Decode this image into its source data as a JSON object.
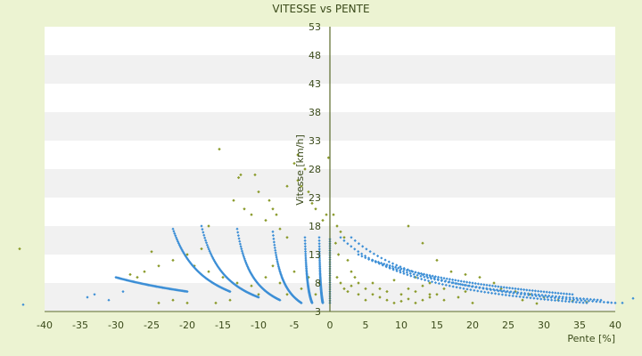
{
  "chart_data": {
    "type": "scatter",
    "title": "VITESSE vs PENTE",
    "xlabel": "Pente [%]",
    "ylabel": "Vitesse [km/h]",
    "xlim": [
      -40,
      40
    ],
    "ylim": [
      3,
      53
    ],
    "x_ticks": [
      "-40",
      "-35",
      "-30",
      "-25",
      "-20",
      "-15",
      "-10",
      "-5",
      "0",
      "5",
      "10",
      "15",
      "20",
      "25",
      "30",
      "35",
      "40"
    ],
    "y_ticks": [
      "3",
      "8",
      "13",
      "18",
      "23",
      "28",
      "33",
      "38",
      "43",
      "48",
      "53"
    ],
    "grid": "horizontal alternating bands",
    "legend": "none",
    "colors": {
      "series_blue": "#3d8fd6",
      "series_olive": "#8a9a2a",
      "band_light": "#f1f1f1",
      "band_white": "#ffffff",
      "axis": "#5a6a2a",
      "background": "#ecf3d2"
    },
    "series": [
      {
        "marker": "blue-diamond",
        "curves_negative": [
          {
            "x_from": -1,
            "x_to": -1.5,
            "y_from": 4.5,
            "y_to": 16
          },
          {
            "x_from": -2.5,
            "x_to": -3.5,
            "y_from": 4.5,
            "y_to": 16
          },
          {
            "x_from": -4,
            "x_to": -8,
            "y_from": 4.5,
            "y_to": 17
          },
          {
            "x_from": -7,
            "x_to": -13,
            "y_from": 5,
            "y_to": 17.5
          },
          {
            "x_from": -10,
            "x_to": -18,
            "y_from": 5.5,
            "y_to": 18
          },
          {
            "x_from": -14,
            "x_to": -22,
            "y_from": 6.5,
            "y_to": 17.5
          },
          {
            "x_from": -20,
            "x_to": -30,
            "y_from": 6.5,
            "y_to": 9
          }
        ],
        "curves_positive": [
          {
            "x_from": 1.5,
            "x_to": 36,
            "y_from": 16,
            "y_to": 4.5
          },
          {
            "x_from": 3,
            "x_to": 40,
            "y_from": 16,
            "y_to": 4.5
          },
          {
            "x_from": 4,
            "x_to": 38,
            "y_from": 13,
            "y_to": 5
          },
          {
            "x_from": 6,
            "x_to": 34,
            "y_from": 12,
            "y_to": 6
          }
        ],
        "outliers": [
          [
            -43,
            4.2
          ],
          [
            -34,
            5.5
          ],
          [
            -33,
            6
          ],
          [
            -31,
            5
          ],
          [
            -29,
            6.5
          ],
          [
            42.5,
            5.3
          ],
          [
            41,
            4.5
          ],
          [
            39,
            4.6
          ]
        ]
      },
      {
        "marker": "olive-diamond",
        "points": [
          [
            -15.5,
            31.5
          ],
          [
            -12.5,
            27
          ],
          [
            -12.8,
            26.5
          ],
          [
            -10.5,
            27
          ],
          [
            -10,
            24
          ],
          [
            -8.5,
            22.5
          ],
          [
            -8,
            21
          ],
          [
            -7.5,
            20
          ],
          [
            -6,
            25
          ],
          [
            -5,
            29
          ],
          [
            -4.5,
            26
          ],
          [
            -4,
            25
          ],
          [
            -3.5,
            28
          ],
          [
            -3,
            24
          ],
          [
            -2.5,
            22
          ],
          [
            -2,
            21
          ],
          [
            -4.5,
            30.5
          ],
          [
            -0.2,
            30
          ],
          [
            -0.5,
            20
          ],
          [
            -1,
            19
          ],
          [
            -13.5,
            22.5
          ],
          [
            -12,
            21
          ],
          [
            -11,
            20
          ],
          [
            -9,
            19
          ],
          [
            -7,
            17.5
          ],
          [
            -6,
            16
          ],
          [
            -17,
            18
          ],
          [
            -18,
            14
          ],
          [
            -20,
            13
          ],
          [
            -22,
            12
          ],
          [
            -24,
            11
          ],
          [
            -25,
            13.5
          ],
          [
            -26,
            10
          ],
          [
            -27,
            9
          ],
          [
            -28,
            9.5
          ],
          [
            -43.5,
            14
          ],
          [
            -19,
            11
          ],
          [
            -17,
            10
          ],
          [
            -15,
            9
          ],
          [
            -13,
            8
          ],
          [
            -11,
            7.5
          ],
          [
            -9,
            9
          ],
          [
            -8,
            11
          ],
          [
            -7,
            8
          ],
          [
            -5,
            10
          ],
          [
            -4,
            7
          ],
          [
            -3,
            9
          ],
          [
            -2,
            6
          ],
          [
            -1.5,
            8
          ],
          [
            -6,
            6
          ],
          [
            -10,
            6
          ],
          [
            -14,
            5
          ],
          [
            -16,
            4.5
          ],
          [
            -20,
            4.5
          ],
          [
            -22,
            5
          ],
          [
            -24,
            4.5
          ],
          [
            0.5,
            20
          ],
          [
            1,
            18
          ],
          [
            1.5,
            17
          ],
          [
            2,
            16
          ],
          [
            0.8,
            15
          ],
          [
            1.2,
            13
          ],
          [
            2.5,
            12
          ],
          [
            3,
            10
          ],
          [
            3.5,
            9
          ],
          [
            4,
            8
          ],
          [
            5,
            7
          ],
          [
            6,
            6
          ],
          [
            7,
            5.5
          ],
          [
            8,
            5
          ],
          [
            9,
            4.5
          ],
          [
            10,
            4.8
          ],
          [
            11,
            5.2
          ],
          [
            12,
            4.5
          ],
          [
            13,
            5
          ],
          [
            14,
            6
          ],
          [
            1,
            9
          ],
          [
            1.5,
            8
          ],
          [
            2,
            7
          ],
          [
            2.5,
            6.5
          ],
          [
            3,
            7.5
          ],
          [
            4,
            6
          ],
          [
            5,
            5
          ],
          [
            6,
            8
          ],
          [
            7,
            7
          ],
          [
            8,
            6.5
          ],
          [
            9,
            8.5
          ],
          [
            10,
            6
          ],
          [
            11,
            7
          ],
          [
            12,
            6.5
          ],
          [
            13,
            7.5
          ],
          [
            14,
            5.5
          ],
          [
            15,
            6
          ],
          [
            16,
            5
          ],
          [
            18,
            5.5
          ],
          [
            20,
            4.5
          ],
          [
            11,
            18
          ],
          [
            13,
            15
          ],
          [
            15,
            12
          ],
          [
            17,
            10
          ],
          [
            19,
            9.5
          ],
          [
            21,
            9
          ],
          [
            23,
            8
          ],
          [
            26,
            6.5
          ],
          [
            28,
            6
          ],
          [
            30,
            5.5
          ],
          [
            32,
            5
          ],
          [
            34,
            4.8
          ],
          [
            36,
            4.6
          ],
          [
            24,
            7
          ],
          [
            27,
            5
          ],
          [
            29,
            4.4
          ],
          [
            12,
            9
          ],
          [
            14,
            8
          ],
          [
            16,
            7
          ],
          [
            19,
            6.5
          ]
        ]
      }
    ]
  }
}
